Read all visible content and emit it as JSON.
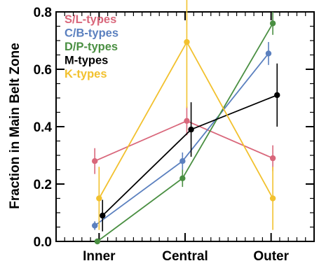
{
  "chart_data": {
    "type": "line",
    "title": "",
    "xlabel": "",
    "ylabel": "Fraction in Main Belt Zone",
    "categories": [
      "Inner",
      "Central",
      "Outer"
    ],
    "ylim": [
      0.0,
      0.8
    ],
    "yticks": [
      "0.0",
      "0.2",
      "0.4",
      "0.6",
      "0.8"
    ],
    "grid": false,
    "legend_position": "top-left",
    "series": [
      {
        "name": "S/L-types",
        "color": "#d9677b",
        "x": [
          0.95,
          2.02,
          3.02
        ],
        "values": [
          0.28,
          0.42,
          0.29
        ],
        "err": [
          0.045,
          0.05,
          0.045
        ]
      },
      {
        "name": "C/B-types",
        "color": "#5b80bf",
        "x": [
          0.95,
          1.97,
          2.97
        ],
        "values": [
          0.055,
          0.28,
          0.655
        ],
        "err": [
          0.015,
          0.03,
          0.04
        ]
      },
      {
        "name": "D/P-types",
        "color": "#4a8f42",
        "x": [
          0.98,
          1.97,
          3.02
        ],
        "values": [
          0.0,
          0.22,
          0.76
        ],
        "err": [
          0.0,
          0.03,
          0.04
        ]
      },
      {
        "name": "M-types",
        "color": "#000000",
        "x": [
          1.04,
          2.07,
          3.07
        ],
        "values": [
          0.09,
          0.39,
          0.51
        ],
        "err": [
          0.055,
          0.095,
          0.11
        ]
      },
      {
        "name": "K-types",
        "color": "#f2c12e",
        "x": [
          1.0,
          2.02,
          3.02
        ],
        "values": [
          0.15,
          0.695,
          0.15
        ],
        "err": [
          0.11,
          0.23,
          0.11
        ]
      }
    ]
  }
}
